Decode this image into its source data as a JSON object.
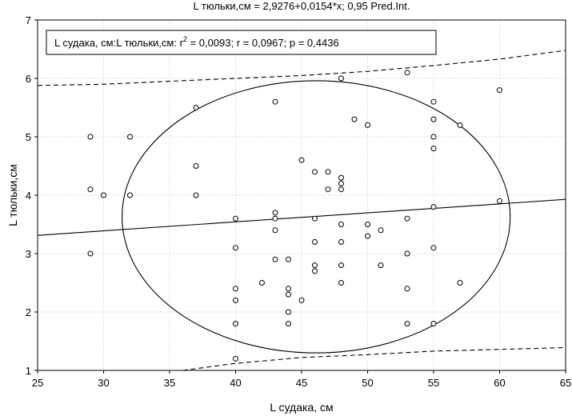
{
  "chart_data": {
    "type": "scatter",
    "title": "L тюльки,см = 2,9276+0,0154*x; 0,95 Pred.Int.",
    "xlabel": "L судака, см",
    "ylabel": "L тюльки,см",
    "xlim": [
      25,
      65
    ],
    "ylim": [
      1,
      7
    ],
    "xticks": [
      "25",
      "30",
      "35",
      "40",
      "45",
      "50",
      "55",
      "60",
      "65"
    ],
    "yticks": [
      "1",
      "2",
      "3",
      "4",
      "5",
      "6",
      "7"
    ],
    "legend_text": "L судака, см:L тюльки,см:  r2 = 0,0093;  r = 0,0967;  p = 0,4436",
    "legend_parts": {
      "prefix": "L судака, см:L тюльки,см:  r",
      "sup": "2",
      "suffix": " = 0,0093;  r = 0,0967;  p = 0,4436"
    },
    "legend_position": "top-left",
    "regression": {
      "intercept": 2.9276,
      "slope": 0.0154
    },
    "prediction_interval_upper": [
      [
        25,
        5.88
      ],
      [
        30,
        5.9
      ],
      [
        35,
        5.95
      ],
      [
        40,
        6.0
      ],
      [
        45,
        6.05
      ],
      [
        50,
        6.12
      ],
      [
        55,
        6.22
      ],
      [
        60,
        6.33
      ],
      [
        65,
        6.48
      ]
    ],
    "prediction_interval_lower": [
      [
        36,
        1.0
      ],
      [
        40,
        1.12
      ],
      [
        45,
        1.22
      ],
      [
        50,
        1.27
      ],
      [
        55,
        1.33
      ],
      [
        60,
        1.36
      ],
      [
        65,
        1.39
      ]
    ],
    "ellipse_outline": {
      "center": [
        46,
        3.62
      ],
      "x_extent": [
        31.4,
        60.8
      ],
      "y_extent": [
        1.3,
        5.96
      ]
    },
    "points": [
      [
        29,
        5.0
      ],
      [
        29,
        4.1
      ],
      [
        29,
        3.0
      ],
      [
        30,
        4.0
      ],
      [
        32,
        5.0
      ],
      [
        32,
        4.0
      ],
      [
        37,
        5.5
      ],
      [
        37,
        4.5
      ],
      [
        37,
        4.0
      ],
      [
        40,
        3.6
      ],
      [
        40,
        3.1
      ],
      [
        40,
        2.4
      ],
      [
        40,
        2.2
      ],
      [
        40,
        1.8
      ],
      [
        40,
        1.2
      ],
      [
        42,
        2.5
      ],
      [
        43,
        5.6
      ],
      [
        43,
        3.7
      ],
      [
        43,
        3.6
      ],
      [
        43,
        3.4
      ],
      [
        43,
        2.9
      ],
      [
        44,
        2.9
      ],
      [
        44,
        2.4
      ],
      [
        44,
        2.3
      ],
      [
        44,
        2.0
      ],
      [
        44,
        1.8
      ],
      [
        45,
        4.6
      ],
      [
        45,
        2.2
      ],
      [
        46,
        4.4
      ],
      [
        46,
        3.6
      ],
      [
        46,
        3.2
      ],
      [
        46,
        2.8
      ],
      [
        46,
        2.7
      ],
      [
        47,
        4.4
      ],
      [
        47,
        4.1
      ],
      [
        48,
        6.0
      ],
      [
        48,
        4.3
      ],
      [
        48,
        4.2
      ],
      [
        48,
        4.1
      ],
      [
        48,
        3.5
      ],
      [
        48,
        3.2
      ],
      [
        48,
        2.8
      ],
      [
        48,
        2.5
      ],
      [
        49,
        5.3
      ],
      [
        50,
        5.2
      ],
      [
        50,
        3.5
      ],
      [
        50,
        3.3
      ],
      [
        51,
        3.4
      ],
      [
        51,
        2.8
      ],
      [
        53,
        6.1
      ],
      [
        53,
        3.6
      ],
      [
        53,
        3.0
      ],
      [
        53,
        2.4
      ],
      [
        53,
        1.8
      ],
      [
        55,
        5.6
      ],
      [
        55,
        5.3
      ],
      [
        55,
        5.0
      ],
      [
        55,
        4.8
      ],
      [
        55,
        3.8
      ],
      [
        55,
        3.1
      ],
      [
        55,
        1.8
      ],
      [
        57,
        5.2
      ],
      [
        57,
        2.5
      ],
      [
        60,
        5.8
      ],
      [
        60,
        3.9
      ]
    ],
    "grid": true
  }
}
